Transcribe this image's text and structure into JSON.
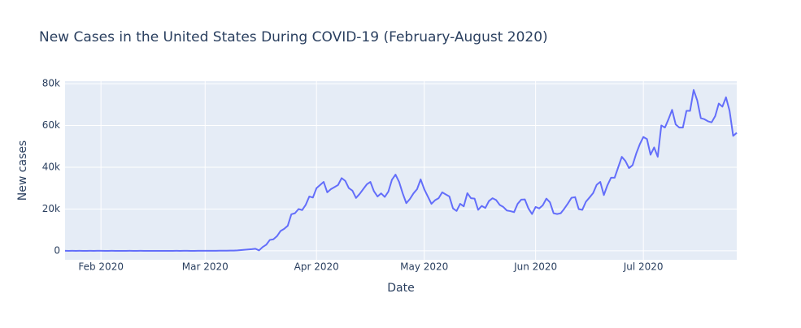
{
  "chart_data": {
    "type": "line",
    "title": "New Cases in the United States During COVID-19 (February-August 2020)",
    "x_label": "Date",
    "y_label": "New cases",
    "x": [
      22,
      23,
      24,
      25,
      26,
      27,
      28,
      29,
      30,
      31,
      32,
      33,
      34,
      35,
      36,
      37,
      38,
      39,
      40,
      41,
      42,
      43,
      44,
      45,
      46,
      47,
      48,
      49,
      50,
      51,
      52,
      53,
      54,
      55,
      56,
      57,
      58,
      59,
      60,
      61,
      62,
      63,
      64,
      65,
      66,
      67,
      68,
      69,
      70,
      71,
      72,
      73,
      74,
      75,
      76,
      77,
      78,
      79,
      80,
      81,
      82,
      83,
      84,
      85,
      86,
      87,
      88,
      89,
      90,
      91,
      92,
      93,
      94,
      95,
      96,
      97,
      98,
      99,
      100,
      101,
      102,
      103,
      104,
      105,
      106,
      107,
      108,
      109,
      110,
      111,
      112,
      113,
      114,
      115,
      116,
      117,
      118,
      119,
      120,
      121,
      122,
      123,
      124,
      125,
      126,
      127,
      128,
      129,
      130,
      131,
      132,
      133,
      134,
      135,
      136,
      137,
      138,
      139,
      140,
      141,
      142,
      143,
      144,
      145,
      146,
      147,
      148,
      149,
      150,
      151,
      152,
      153,
      154,
      155,
      156,
      157,
      158,
      159,
      160,
      161,
      162,
      163,
      164,
      165,
      166,
      167,
      168,
      169,
      170,
      171,
      172,
      173,
      174,
      175,
      176,
      177,
      178,
      179,
      180,
      181,
      182,
      183,
      184,
      185,
      186,
      187,
      188,
      189,
      190,
      191,
      192,
      193,
      194,
      195,
      196,
      197,
      198,
      199,
      200,
      201,
      202,
      203,
      204,
      205,
      206,
      207,
      208,
      209
    ],
    "series": [
      {
        "name": "New cases",
        "color": "#636efa",
        "values": [
          1,
          0,
          1,
          0,
          3,
          0,
          0,
          1,
          0,
          2,
          1,
          0,
          0,
          3,
          0,
          0,
          0,
          0,
          1,
          0,
          0,
          1,
          0,
          0,
          0,
          0,
          0,
          0,
          0,
          0,
          0,
          8,
          0,
          6,
          1,
          0,
          0,
          3,
          8,
          5,
          18,
          12,
          22,
          48,
          73,
          68,
          117,
          120,
          200,
          350,
          500,
          650,
          800,
          1000,
          200,
          1800,
          2900,
          5200,
          5500,
          7000,
          9500,
          10500,
          12000,
          17500,
          18000,
          20000,
          19500,
          22000,
          26000,
          25500,
          30000,
          31500,
          33000,
          28000,
          29500,
          30500,
          31500,
          34800,
          33500,
          30000,
          28800,
          25300,
          27200,
          29500,
          31800,
          33000,
          28500,
          26000,
          27500,
          25800,
          28300,
          34000,
          36500,
          33000,
          27500,
          22800,
          24800,
          27500,
          29500,
          34200,
          29500,
          26000,
          22500,
          24200,
          25200,
          28000,
          27000,
          26000,
          20300,
          19100,
          22500,
          21300,
          27600,
          25200,
          25000,
          19600,
          21500,
          20500,
          23800,
          25200,
          24300,
          22000,
          21000,
          19300,
          19000,
          18500,
          22500,
          24500,
          24600,
          20300,
          17600,
          21000,
          20300,
          21800,
          25000,
          23200,
          18000,
          17600,
          18000,
          20200,
          22700,
          25400,
          25700,
          20000,
          19600,
          23500,
          25500,
          27600,
          31600,
          33000,
          26700,
          31400,
          35000,
          35000,
          40000,
          45000,
          43000,
          39600,
          41000,
          46500,
          51000,
          54500,
          53500,
          46000,
          49500,
          45000,
          60000,
          59000,
          63000,
          67500,
          60500,
          59000,
          59000,
          67000,
          67000,
          77000,
          72000,
          63500,
          63000,
          62000,
          61500,
          64500,
          70500,
          69000,
          73500,
          67000,
          55000,
          56500
        ]
      }
    ],
    "xlim": [
      22,
      209
    ],
    "xticks": [
      {
        "value": 32,
        "label": "Feb 2020"
      },
      {
        "value": 61,
        "label": "Mar 2020"
      },
      {
        "value": 92,
        "label": "Apr 2020"
      },
      {
        "value": 122,
        "label": "May 2020"
      },
      {
        "value": 153,
        "label": "Jun 2020"
      },
      {
        "value": 183,
        "label": "Jul 2020"
      }
    ],
    "ylim": [
      -4300,
      81200
    ],
    "yticks": [
      0,
      {
        "value": 20000,
        "label": "20k"
      },
      {
        "value": 40000,
        "label": "40k"
      },
      {
        "value": 60000,
        "label": "60k"
      },
      {
        "value": 80000,
        "label": "80k"
      }
    ],
    "grid": true
  }
}
